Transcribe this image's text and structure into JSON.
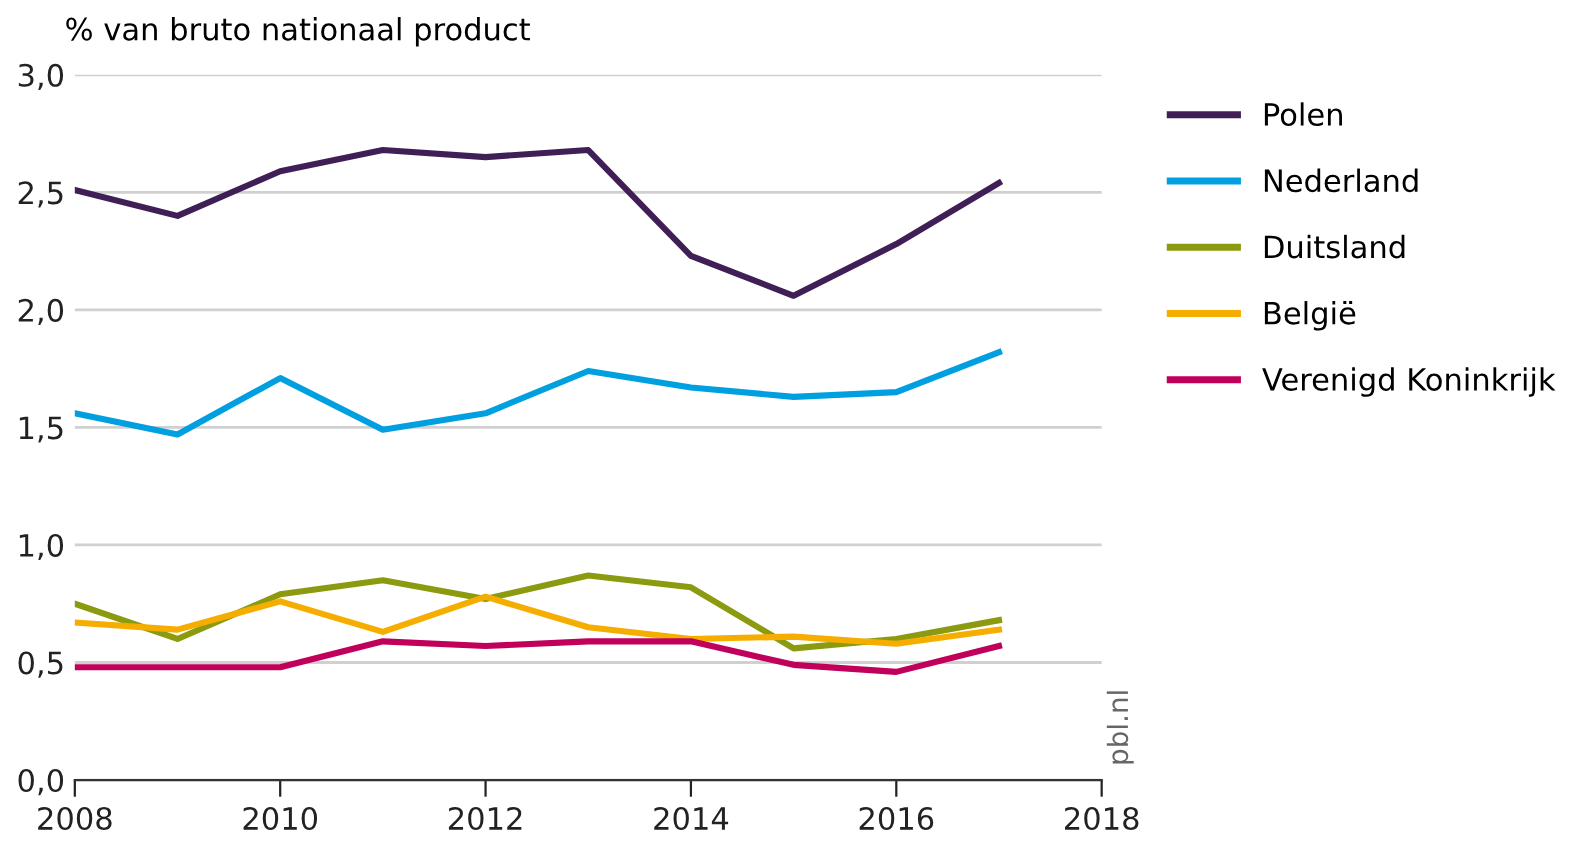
{
  "chart_data": {
    "type": "line",
    "ylabel": "% van bruto nationaal product",
    "x": [
      2008,
      2009,
      2010,
      2011,
      2012,
      2013,
      2014,
      2015,
      2016,
      2017
    ],
    "series": [
      {
        "name": "Polen",
        "color": "#3f1f55",
        "values": [
          2.51,
          2.4,
          2.59,
          2.68,
          2.65,
          2.68,
          2.23,
          2.06,
          2.28,
          2.54
        ]
      },
      {
        "name": "Nederland",
        "color": "#00a0e0",
        "values": [
          1.56,
          1.47,
          1.71,
          1.49,
          1.56,
          1.74,
          1.67,
          1.63,
          1.65,
          1.82
        ]
      },
      {
        "name": "Duitsland",
        "color": "#8c9a10",
        "values": [
          0.75,
          0.6,
          0.79,
          0.85,
          0.77,
          0.87,
          0.82,
          0.56,
          0.6,
          0.68
        ]
      },
      {
        "name": "België",
        "color": "#f5ae00",
        "values": [
          0.67,
          0.64,
          0.76,
          0.63,
          0.78,
          0.65,
          0.6,
          0.61,
          0.58,
          0.64
        ]
      },
      {
        "name": "Verenigd Koninkrijk",
        "color": "#c0005a",
        "values": [
          0.48,
          0.48,
          0.48,
          0.59,
          0.57,
          0.59,
          0.59,
          0.49,
          0.46,
          0.57
        ]
      }
    ],
    "xlim": [
      2008,
      2018
    ],
    "xticks": [
      2008,
      2010,
      2012,
      2014,
      2016,
      2018
    ],
    "ylim": [
      0,
      3.0
    ],
    "yticks": [
      {
        "value": 0,
        "label": "0,0"
      },
      {
        "value": 0.5,
        "label": "0,5"
      },
      {
        "value": 1.0,
        "label": "1,0"
      },
      {
        "value": 1.5,
        "label": "1,5"
      },
      {
        "value": 2.0,
        "label": "2,0"
      },
      {
        "value": 2.5,
        "label": "2,5"
      },
      {
        "value": 3.0,
        "label": "3,0"
      }
    ],
    "grid": "y",
    "legend": "right",
    "marker": "none",
    "line_style": "solid",
    "annotations": [
      "pbl.nl"
    ]
  }
}
